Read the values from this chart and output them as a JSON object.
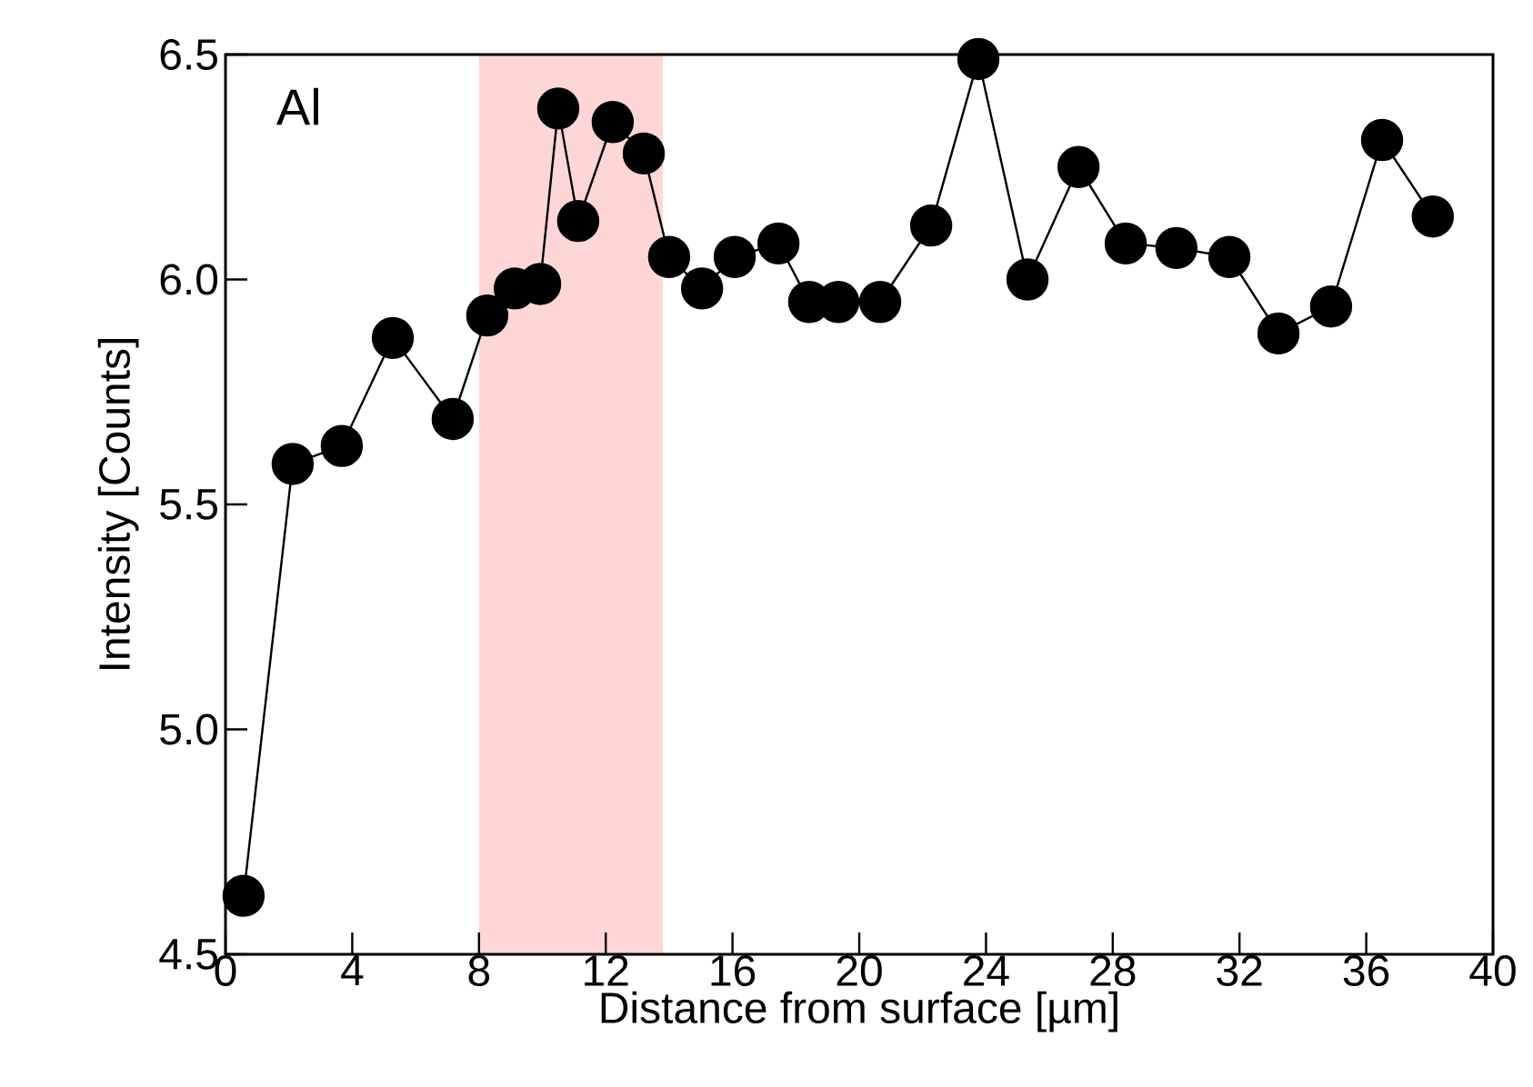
{
  "chart_data": {
    "type": "line",
    "xlabel": "Distance from surface [µm]",
    "ylabel": "Intensity [Counts]",
    "annotations": [
      "Al"
    ],
    "x": [
      0.57,
      2.12,
      3.67,
      5.28,
      7.17,
      8.26,
      9.13,
      9.93,
      10.5,
      11.13,
      12.22,
      13.2,
      14.0,
      15.04,
      16.07,
      17.45,
      18.42,
      19.34,
      20.66,
      22.27,
      23.76,
      25.31,
      26.92,
      28.41,
      30.01,
      31.68,
      33.23,
      34.89,
      36.5,
      38.1
    ],
    "series": [
      {
        "color": "#000000",
        "values": [
          4.63,
          5.59,
          5.63,
          5.87,
          5.69,
          5.92,
          5.98,
          5.99,
          6.38,
          6.13,
          6.35,
          6.28,
          6.05,
          5.98,
          6.05,
          6.08,
          5.95,
          5.95,
          5.95,
          6.12,
          6.49,
          6.0,
          6.25,
          6.08,
          6.07,
          6.05,
          5.88,
          5.94,
          6.31,
          6.14
        ]
      }
    ],
    "xlim": [
      0,
      40
    ],
    "ylim": [
      4.5,
      6.5
    ],
    "xticks": [
      0,
      4,
      8,
      12,
      16,
      20,
      24,
      28,
      32,
      36,
      40
    ],
    "yticks": [
      4.5,
      {
        "value": 5,
        "label": "5.0"
      },
      5.5,
      {
        "value": 6,
        "label": "6.0"
      },
      6.5
    ],
    "bands": [
      {
        "axis": "x",
        "from": 8,
        "to": 13.8,
        "color": "#ffd6d6"
      }
    ],
    "marker": "circle",
    "line_style": "solid"
  }
}
